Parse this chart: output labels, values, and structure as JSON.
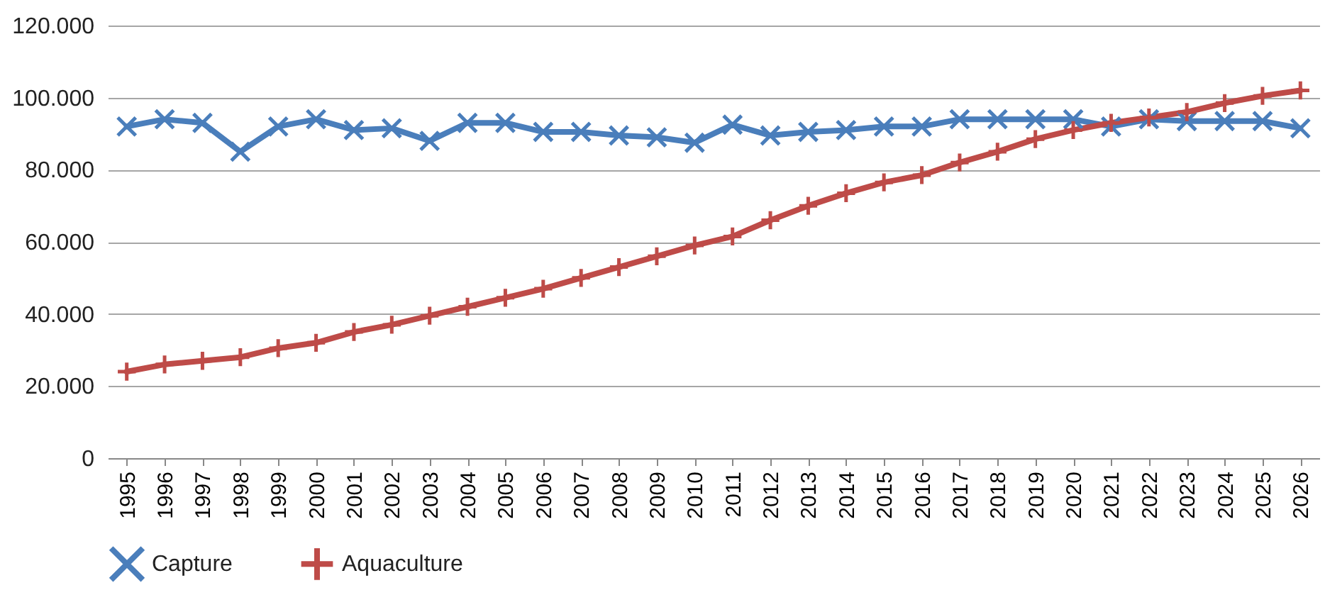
{
  "chart_data": {
    "type": "line",
    "categories": [
      "1995",
      "1996",
      "1997",
      "1998",
      "1999",
      "2000",
      "2001",
      "2002",
      "2003",
      "2004",
      "2005",
      "2006",
      "2007",
      "2008",
      "2009",
      "2010",
      "2011",
      "2012",
      "2013",
      "2014",
      "2015",
      "2016",
      "2017",
      "2018",
      "2019",
      "2020",
      "2021",
      "2022",
      "2023",
      "2024",
      "2025",
      "2026"
    ],
    "series": [
      {
        "name": "Capture",
        "color": "#4a7ebb",
        "values": [
          92000,
          94000,
          93000,
          85000,
          92000,
          94000,
          91000,
          91500,
          88000,
          93000,
          93000,
          90500,
          90500,
          89500,
          89000,
          87500,
          92500,
          89500,
          90500,
          91000,
          92000,
          92000,
          94000,
          94000,
          94000,
          94000,
          92000,
          94000,
          93500,
          93500,
          93500,
          91500
        ]
      },
      {
        "name": "Aquaculture",
        "color": "#be4b48",
        "values": [
          24000,
          26000,
          27000,
          28000,
          30500,
          32000,
          35000,
          37000,
          39500,
          42000,
          44500,
          47000,
          50000,
          53000,
          56000,
          59000,
          61500,
          66000,
          70000,
          73500,
          76500,
          78500,
          82000,
          85000,
          88500,
          91000,
          93000,
          94500,
          96000,
          98500,
          100500,
          102000
        ]
      }
    ],
    "ylim": [
      0,
      120000
    ],
    "yticks": [
      0,
      {
        "value": 20000,
        "label": "20.000"
      },
      {
        "value": 40000,
        "label": "40.000"
      },
      {
        "value": 60000,
        "label": "60.000"
      },
      {
        "value": 80000,
        "label": "80.000"
      },
      {
        "value": 100000,
        "label": "100.000"
      },
      {
        "value": 120000,
        "label": "120.000"
      }
    ],
    "grid": "y",
    "legend": "bottom",
    "marker": "cross",
    "line_style": "solid"
  }
}
